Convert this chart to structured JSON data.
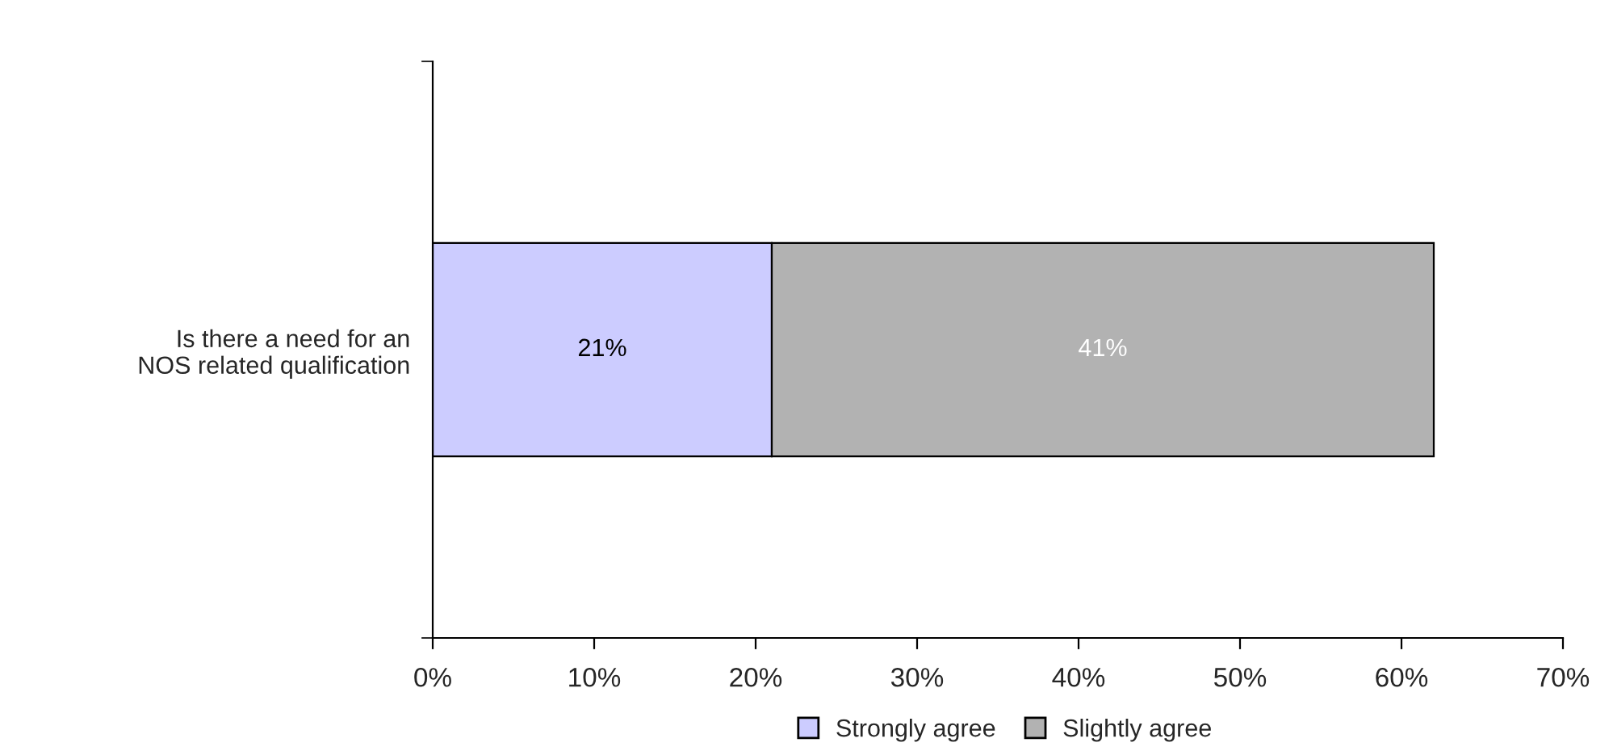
{
  "chart_data": {
    "type": "bar",
    "orientation": "horizontal",
    "stacked": true,
    "categories": [
      "Is there a need for an\nNOS related qualification"
    ],
    "series": [
      {
        "name": "Strongly agree",
        "color": "#ccccff",
        "values": [
          21
        ],
        "value_labels": [
          "21%"
        ]
      },
      {
        "name": "Slightly agree",
        "color": "#b2b2b2",
        "values": [
          41
        ],
        "value_labels": [
          "41%"
        ]
      }
    ],
    "xlim": [
      0,
      70
    ],
    "xticks": [
      {
        "value": 0,
        "label": "0%"
      },
      {
        "value": 10,
        "label": "10%"
      },
      {
        "value": 20,
        "label": "20%"
      },
      {
        "value": 30,
        "label": "30%"
      },
      {
        "value": 40,
        "label": "40%"
      },
      {
        "value": 50,
        "label": "50%"
      },
      {
        "value": 60,
        "label": "60%"
      },
      {
        "value": 70,
        "label": "70%"
      }
    ],
    "grid": false,
    "legend": "bottom",
    "marker": "square"
  }
}
